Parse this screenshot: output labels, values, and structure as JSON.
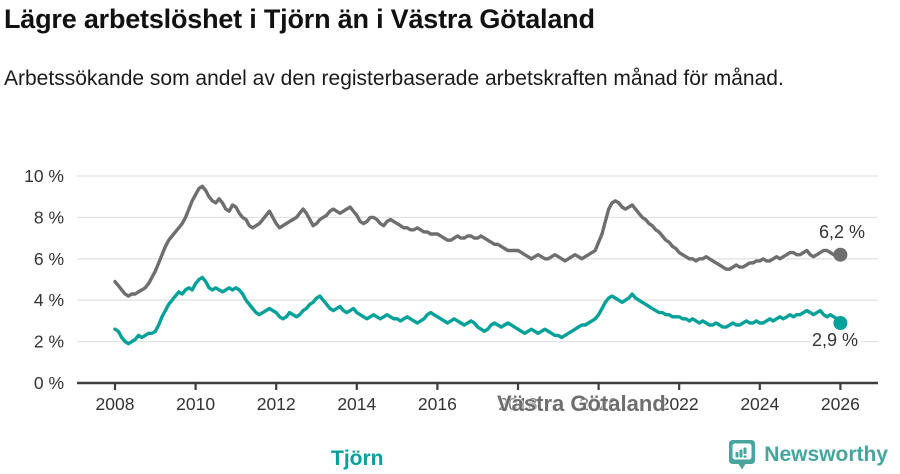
{
  "chart_data": {
    "type": "line",
    "title": "Lägre arbetslöshet i Tjörn än i Västra Götaland",
    "subtitle": "Arbetssökande som andel av den registerbaserade arbetskraften månad för månad.",
    "unit": "%",
    "frequency": "monthly",
    "x_start_year": 2008,
    "ylim": [
      0,
      10
    ],
    "grid": true,
    "legend": "inline-labels",
    "x_ticks": [
      {
        "year": 2008,
        "label": "2008"
      },
      {
        "year": 2010,
        "label": "2010"
      },
      {
        "year": 2012,
        "label": "2012"
      },
      {
        "year": 2014,
        "label": "2014"
      },
      {
        "year": 2016,
        "label": "2016"
      },
      {
        "year": 2018,
        "label": "2018"
      },
      {
        "year": 2020,
        "label": "2020"
      },
      {
        "year": 2022,
        "label": "2022"
      },
      {
        "year": 2024,
        "label": "2024"
      },
      {
        "year": 2026,
        "label": "2026"
      }
    ],
    "y_ticks": [
      {
        "value": 0,
        "label": "0 %"
      },
      {
        "value": 2,
        "label": "2 %"
      },
      {
        "value": 4,
        "label": "4 %"
      },
      {
        "value": 6,
        "label": "6 %"
      },
      {
        "value": 8,
        "label": "8 %"
      },
      {
        "value": 10,
        "label": "10 %"
      }
    ],
    "series": [
      {
        "name": "Västra Götaland",
        "color": "#6e6e6e",
        "end_label": "6,2 %",
        "end_value": 6.2,
        "values": [
          4.9,
          4.7,
          4.5,
          4.3,
          4.2,
          4.3,
          4.3,
          4.4,
          4.5,
          4.6,
          4.8,
          5.1,
          5.4,
          5.8,
          6.2,
          6.6,
          6.9,
          7.1,
          7.3,
          7.5,
          7.7,
          8.0,
          8.4,
          8.8,
          9.1,
          9.4,
          9.5,
          9.3,
          9.0,
          8.8,
          8.7,
          8.9,
          8.7,
          8.4,
          8.3,
          8.6,
          8.5,
          8.2,
          8.0,
          7.9,
          7.6,
          7.5,
          7.6,
          7.7,
          7.9,
          8.1,
          8.3,
          8.0,
          7.7,
          7.5,
          7.6,
          7.7,
          7.8,
          7.9,
          8.0,
          8.2,
          8.4,
          8.2,
          7.9,
          7.6,
          7.7,
          7.9,
          8.0,
          8.1,
          8.3,
          8.4,
          8.3,
          8.2,
          8.3,
          8.4,
          8.5,
          8.3,
          8.1,
          7.8,
          7.7,
          7.8,
          8.0,
          8.0,
          7.9,
          7.7,
          7.6,
          7.8,
          7.9,
          7.8,
          7.7,
          7.6,
          7.5,
          7.5,
          7.4,
          7.4,
          7.5,
          7.4,
          7.3,
          7.3,
          7.2,
          7.2,
          7.2,
          7.1,
          7.0,
          6.9,
          6.9,
          7.0,
          7.1,
          7.0,
          7.0,
          7.1,
          7.1,
          7.0,
          7.0,
          7.1,
          7.0,
          6.9,
          6.8,
          6.7,
          6.7,
          6.6,
          6.5,
          6.4,
          6.4,
          6.4,
          6.4,
          6.3,
          6.2,
          6.1,
          6.0,
          6.1,
          6.2,
          6.1,
          6.0,
          6.0,
          6.1,
          6.2,
          6.1,
          6.0,
          5.9,
          6.0,
          6.1,
          6.2,
          6.1,
          6.0,
          6.1,
          6.2,
          6.3,
          6.4,
          6.8,
          7.2,
          7.8,
          8.4,
          8.7,
          8.8,
          8.7,
          8.5,
          8.4,
          8.5,
          8.6,
          8.4,
          8.2,
          8.0,
          7.9,
          7.7,
          7.6,
          7.4,
          7.3,
          7.1,
          6.9,
          6.8,
          6.6,
          6.5,
          6.3,
          6.2,
          6.1,
          6.0,
          6.0,
          5.9,
          6.0,
          6.0,
          6.1,
          6.0,
          5.9,
          5.8,
          5.7,
          5.6,
          5.5,
          5.5,
          5.6,
          5.7,
          5.6,
          5.6,
          5.7,
          5.8,
          5.8,
          5.9,
          5.9,
          6.0,
          5.9,
          5.9,
          6.0,
          6.1,
          6.0,
          6.1,
          6.2,
          6.3,
          6.3,
          6.2,
          6.2,
          6.3,
          6.4,
          6.2,
          6.1,
          6.2,
          6.3,
          6.4,
          6.4,
          6.3,
          6.2,
          6.2,
          6.2
        ]
      },
      {
        "name": "Tjörn",
        "color": "#04a199",
        "end_label": "2,9 %",
        "end_value": 2.9,
        "values": [
          2.6,
          2.5,
          2.2,
          2.0,
          1.9,
          2.0,
          2.1,
          2.3,
          2.2,
          2.3,
          2.4,
          2.4,
          2.5,
          2.8,
          3.2,
          3.5,
          3.8,
          4.0,
          4.2,
          4.4,
          4.3,
          4.5,
          4.6,
          4.5,
          4.8,
          5.0,
          5.1,
          4.9,
          4.6,
          4.5,
          4.6,
          4.5,
          4.4,
          4.5,
          4.6,
          4.5,
          4.6,
          4.5,
          4.3,
          4.0,
          3.8,
          3.6,
          3.4,
          3.3,
          3.4,
          3.5,
          3.6,
          3.5,
          3.4,
          3.2,
          3.1,
          3.2,
          3.4,
          3.3,
          3.2,
          3.3,
          3.5,
          3.6,
          3.8,
          3.9,
          4.1,
          4.2,
          4.0,
          3.8,
          3.6,
          3.5,
          3.6,
          3.7,
          3.5,
          3.4,
          3.5,
          3.6,
          3.4,
          3.3,
          3.2,
          3.1,
          3.2,
          3.3,
          3.2,
          3.1,
          3.2,
          3.3,
          3.2,
          3.1,
          3.1,
          3.0,
          3.1,
          3.2,
          3.1,
          3.0,
          2.9,
          3.0,
          3.1,
          3.3,
          3.4,
          3.3,
          3.2,
          3.1,
          3.0,
          2.9,
          3.0,
          3.1,
          3.0,
          2.9,
          2.8,
          2.9,
          3.0,
          2.9,
          2.7,
          2.6,
          2.5,
          2.6,
          2.8,
          2.9,
          2.8,
          2.7,
          2.8,
          2.9,
          2.8,
          2.7,
          2.6,
          2.5,
          2.4,
          2.5,
          2.6,
          2.5,
          2.4,
          2.5,
          2.6,
          2.5,
          2.4,
          2.3,
          2.3,
          2.2,
          2.3,
          2.4,
          2.5,
          2.6,
          2.7,
          2.8,
          2.8,
          2.9,
          3.0,
          3.1,
          3.3,
          3.6,
          3.9,
          4.1,
          4.2,
          4.1,
          4.0,
          3.9,
          4.0,
          4.1,
          4.3,
          4.1,
          4.0,
          3.9,
          3.8,
          3.7,
          3.6,
          3.5,
          3.4,
          3.4,
          3.3,
          3.3,
          3.2,
          3.2,
          3.2,
          3.1,
          3.1,
          3.0,
          3.1,
          3.0,
          2.9,
          3.0,
          2.9,
          2.8,
          2.8,
          2.9,
          2.8,
          2.7,
          2.7,
          2.8,
          2.9,
          2.8,
          2.8,
          2.9,
          3.0,
          2.9,
          2.9,
          3.0,
          2.9,
          2.9,
          3.0,
          3.1,
          3.0,
          3.1,
          3.2,
          3.1,
          3.2,
          3.3,
          3.2,
          3.3,
          3.3,
          3.4,
          3.5,
          3.4,
          3.3,
          3.4,
          3.5,
          3.3,
          3.2,
          3.3,
          3.2,
          3.1,
          2.9
        ]
      }
    ],
    "colors": {
      "axis": "#3d3d3d",
      "gridline": "#e3e3e3",
      "tick_text": "#333333",
      "brand_teal": "#46a69e"
    }
  },
  "footer": {
    "brand": "Newsworthy"
  }
}
